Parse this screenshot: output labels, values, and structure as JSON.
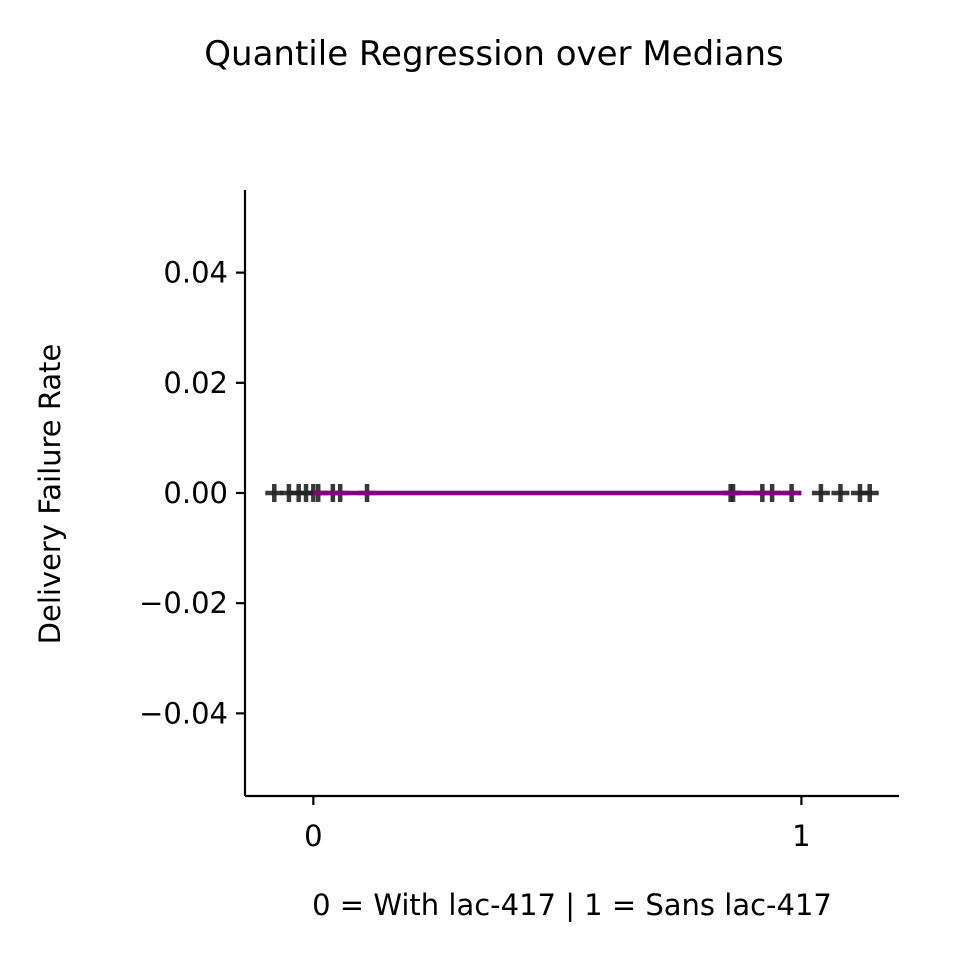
{
  "chart_data": {
    "type": "scatter",
    "title": "Quantile Regression over Medians",
    "xlabel": "0 = With lac-417 | 1 = Sans lac-417",
    "ylabel": "Delivery Failure Rate",
    "xlim": [
      -0.14,
      1.2
    ],
    "ylim": [
      -0.055,
      0.055
    ],
    "xticks": [
      0,
      1
    ],
    "xtick_labels": [
      "0",
      "1"
    ],
    "yticks": [
      0.04,
      0.02,
      0.0,
      -0.02,
      -0.04
    ],
    "ytick_labels": [
      "0.04",
      "0.02",
      "0.00",
      "−0.02",
      "−0.04"
    ],
    "grid": false,
    "series": [
      {
        "marker": "plus",
        "color": "#222222",
        "points": [
          {
            "x": -0.08,
            "y": 0
          },
          {
            "x": -0.05,
            "y": 0
          },
          {
            "x": -0.03,
            "y": 0
          },
          {
            "x": -0.015,
            "y": 0
          },
          {
            "x": 0.0,
            "y": 0
          },
          {
            "x": 0.01,
            "y": 0
          },
          {
            "x": 0.04,
            "y": 0
          },
          {
            "x": 0.055,
            "y": 0
          },
          {
            "x": 0.11,
            "y": 0
          },
          {
            "x": 0.855,
            "y": 0
          },
          {
            "x": 0.86,
            "y": 0
          },
          {
            "x": 0.92,
            "y": 0
          },
          {
            "x": 0.94,
            "y": 0
          },
          {
            "x": 0.98,
            "y": 0
          },
          {
            "x": 1.04,
            "y": 0
          },
          {
            "x": 1.08,
            "y": 0
          },
          {
            "x": 1.12,
            "y": 0
          },
          {
            "x": 1.14,
            "y": 0
          }
        ]
      },
      {
        "marker": "line",
        "color": "#800080",
        "points": [
          {
            "x": 0,
            "y": 0
          },
          {
            "x": 1,
            "y": 0
          }
        ]
      }
    ]
  }
}
